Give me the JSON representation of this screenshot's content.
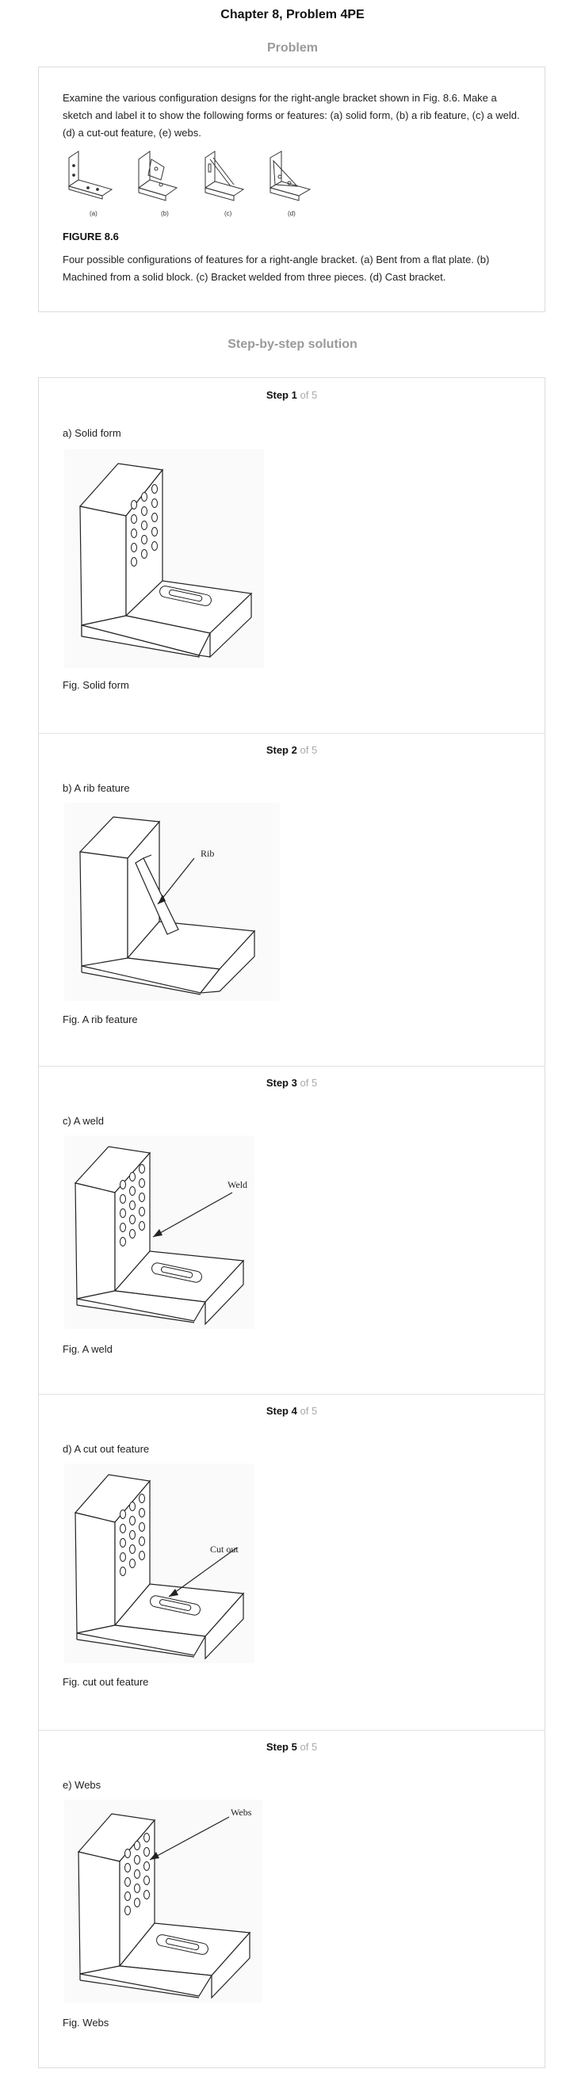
{
  "header": {
    "title": "Chapter 8, Problem 4PE",
    "problem_label": "Problem",
    "solution_label": "Step-by-step solution"
  },
  "problem": {
    "text": "Examine the various configuration designs for the right-angle bracket shown in Fig. 8.6. Make a sketch and label it to show the following forms or features: (a) solid form, (b) a rib feature, (c) a weld. (d) a cut-out feature, (e) webs.",
    "thumb_labels": [
      "(a)",
      "(b)",
      "(c)",
      "(d)"
    ],
    "figure_label": "FIGURE 8.6",
    "figure_caption": "Four possible configurations of features for a right-angle bracket. (a) Bent from a flat plate. (b) Machined from a solid block. (c) Bracket welded from three pieces. (d) Cast bracket."
  },
  "steps": [
    {
      "step_word": "Step",
      "num": "1",
      "of_total": "of 5",
      "subtitle": "a) Solid form",
      "caption": "Fig. Solid form",
      "callout": ""
    },
    {
      "step_word": "Step",
      "num": "2",
      "of_total": "of 5",
      "subtitle": "b) A rib feature",
      "caption": "Fig. A rib feature",
      "callout": "Rib"
    },
    {
      "step_word": "Step",
      "num": "3",
      "of_total": "of 5",
      "subtitle": "c) A weld",
      "caption": "Fig. A weld",
      "callout": "Weld"
    },
    {
      "step_word": "Step",
      "num": "4",
      "of_total": "of 5",
      "subtitle": "d) A cut out feature",
      "caption": "Fig. cut out feature",
      "callout": "Cut out"
    },
    {
      "step_word": "Step",
      "num": "5",
      "of_total": "of 5",
      "subtitle": "e) Webs",
      "caption": "Fig. Webs",
      "callout": "Webs"
    }
  ]
}
